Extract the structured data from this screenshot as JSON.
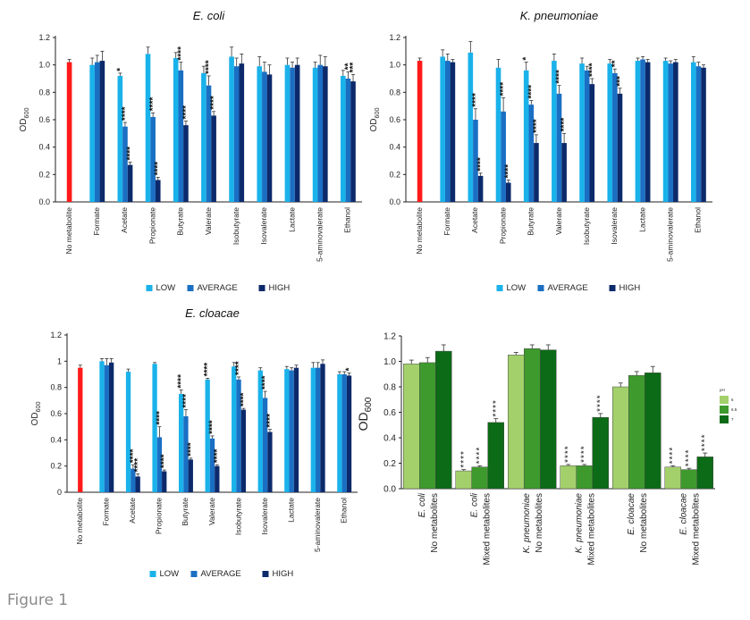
{
  "figure_label": "Figure 1",
  "legend_panels": {
    "low": "LOW",
    "average": "AVERAGE",
    "high": "HIGH"
  },
  "colors": {
    "low": "#1ab2ea",
    "average": "#1a6fc3",
    "high": "#0c2a6b",
    "control": "#ff1a1a",
    "ph6": "#a3d06b",
    "ph65": "#3f9a2e",
    "ph7": "#0c6b16"
  },
  "chart_data": [
    {
      "type": "bar",
      "title": "E. coli",
      "ylabel": "OD600",
      "ylim": [
        0,
        1.2
      ],
      "yticks": [
        "0.0",
        "0.2",
        "0.4",
        "0.6",
        "0.8",
        "1.0",
        "1.2"
      ],
      "control": {
        "label": "No metabolite",
        "value": 1.02,
        "err": 0.02
      },
      "categories": [
        "Formate",
        "Acetate",
        "Propionate",
        "Butyrate",
        "Valerate",
        "Isobutyrate",
        "Isovalerate",
        "Lactate",
        "5-aminovalerate",
        "Ethanol"
      ],
      "series": [
        {
          "name": "LOW",
          "values": [
            1.0,
            0.92,
            1.08,
            1.05,
            0.94,
            1.06,
            0.99,
            1.0,
            0.98,
            0.92
          ],
          "err": [
            0.05,
            0.02,
            0.05,
            0.04,
            0.05,
            0.07,
            0.07,
            0.05,
            0.04,
            0.04
          ]
        },
        {
          "name": "AVERAGE",
          "values": [
            1.02,
            0.55,
            0.62,
            0.96,
            0.85,
            0.99,
            0.95,
            0.98,
            1.0,
            0.9
          ],
          "err": [
            0.05,
            0.03,
            0.03,
            0.06,
            0.07,
            0.06,
            0.07,
            0.04,
            0.07,
            0.05
          ]
        },
        {
          "name": "HIGH",
          "values": [
            1.03,
            0.27,
            0.16,
            0.56,
            0.63,
            1.01,
            0.93,
            1.0,
            0.99,
            0.88
          ],
          "err": [
            0.07,
            0.02,
            0.02,
            0.03,
            0.03,
            0.07,
            0.07,
            0.05,
            0.07,
            0.05
          ]
        }
      ],
      "significance": [
        [
          "",
          "",
          ""
        ],
        [
          "*",
          "****",
          "****"
        ],
        [
          "",
          "****",
          "****"
        ],
        [
          "",
          "****",
          "****"
        ],
        [
          "",
          "****",
          "****"
        ],
        [
          "",
          "",
          ""
        ],
        [
          "",
          "",
          ""
        ],
        [
          "",
          "",
          ""
        ],
        [
          "",
          "",
          ""
        ],
        [
          "",
          "**",
          "***"
        ]
      ]
    },
    {
      "type": "bar",
      "title": "K. pneumoniae",
      "ylabel": "OD600",
      "ylim": [
        0,
        1.2
      ],
      "yticks": [
        "0.0",
        "0.2",
        "0.4",
        "0.6",
        "0.8",
        "1.0",
        "1.2"
      ],
      "control": {
        "label": "No metabolite",
        "value": 1.03,
        "err": 0.02
      },
      "categories": [
        "Formate",
        "Acetate",
        "Propionate",
        "Butyrate",
        "Valerate",
        "Isobutyrate",
        "Isovalerate",
        "Lactate",
        "5-aminovalerate",
        "Ethanol"
      ],
      "series": [
        {
          "name": "LOW",
          "values": [
            1.06,
            1.09,
            0.98,
            0.96,
            1.03,
            1.01,
            1.01,
            1.03,
            1.03,
            1.02
          ],
          "err": [
            0.05,
            0.08,
            0.06,
            0.06,
            0.05,
            0.04,
            0.03,
            0.02,
            0.02,
            0.04
          ]
        },
        {
          "name": "AVERAGE",
          "values": [
            1.03,
            0.6,
            0.66,
            0.71,
            0.79,
            0.96,
            0.94,
            1.04,
            1.01,
            0.99
          ],
          "err": [
            0.05,
            0.08,
            0.1,
            0.03,
            0.06,
            0.03,
            0.03,
            0.02,
            0.02,
            0.03
          ]
        },
        {
          "name": "HIGH",
          "values": [
            1.02,
            0.19,
            0.14,
            0.43,
            0.43,
            0.86,
            0.79,
            1.02,
            1.02,
            0.98
          ],
          "err": [
            0.02,
            0.02,
            0.02,
            0.06,
            0.07,
            0.04,
            0.04,
            0.02,
            0.02,
            0.02
          ]
        }
      ],
      "significance": [
        [
          "",
          "",
          ""
        ],
        [
          "",
          "****",
          "****"
        ],
        [
          "",
          "****",
          "****"
        ],
        [
          "*",
          "****",
          "****"
        ],
        [
          "",
          "****",
          "****"
        ],
        [
          "",
          "",
          "****"
        ],
        [
          "",
          "**",
          "***"
        ],
        [
          "",
          "",
          ""
        ],
        [
          "",
          "",
          ""
        ],
        [
          "",
          "",
          ""
        ]
      ]
    },
    {
      "type": "bar",
      "title": "E. cloacae",
      "ylabel": "OD600",
      "ylim": [
        0,
        1.2
      ],
      "yticks": [
        "0",
        "0.2",
        "0.4",
        "0.6",
        "0.8",
        "1",
        "1.2"
      ],
      "control": {
        "label": "No metabolite",
        "value": 0.95,
        "err": 0.02
      },
      "categories": [
        "Formate",
        "Acetate",
        "Propionate",
        "Butyrate",
        "Valerate",
        "Isobutyrate",
        "Isovalerate",
        "Lactate",
        "5-aminovalerate",
        "Ethanol"
      ],
      "series": [
        {
          "name": "LOW",
          "values": [
            1.0,
            0.92,
            0.98,
            0.75,
            0.86,
            0.96,
            0.93,
            0.94,
            0.95,
            0.9
          ],
          "err": [
            0.02,
            0.02,
            0.01,
            0.03,
            0.01,
            0.03,
            0.02,
            0.02,
            0.04,
            0.02
          ]
        },
        {
          "name": "AVERAGE",
          "values": [
            0.97,
            0.18,
            0.42,
            0.58,
            0.41,
            0.86,
            0.72,
            0.93,
            0.95,
            0.9
          ],
          "err": [
            0.05,
            0.03,
            0.08,
            0.05,
            0.02,
            0.02,
            0.05,
            0.02,
            0.04,
            0.02
          ]
        },
        {
          "name": "HIGH",
          "values": [
            0.99,
            0.12,
            0.16,
            0.25,
            0.2,
            0.63,
            0.46,
            0.95,
            0.98,
            0.89
          ],
          "err": [
            0.03,
            0.02,
            0.01,
            0.01,
            0.01,
            0.01,
            0.02,
            0.02,
            0.03,
            0.02
          ]
        }
      ],
      "significance": [
        [
          "",
          "",
          ""
        ],
        [
          "",
          "****",
          "****"
        ],
        [
          "",
          "****",
          "****"
        ],
        [
          "****",
          "****",
          "****"
        ],
        [
          "****",
          "****",
          "****"
        ],
        [
          "",
          "****",
          "****"
        ],
        [
          "",
          "****",
          "****"
        ],
        [
          "",
          "",
          ""
        ],
        [
          "",
          "",
          ""
        ],
        [
          "",
          "",
          "*"
        ]
      ]
    },
    {
      "type": "bar",
      "title": "",
      "ylabel": "OD600",
      "ylim": [
        0,
        1.2
      ],
      "yticks": [
        "0.0",
        "0.2",
        "0.4",
        "0.6",
        "0.8",
        "1.0",
        "1.2"
      ],
      "legend_title": "pH",
      "categories": [
        [
          "E. coli",
          "No metabolites"
        ],
        [
          "E. coli",
          "Mixed metabolites"
        ],
        [
          "K. pneumoniae",
          "No metabolites"
        ],
        [
          "K. pneumoniae",
          "Mixed metabolites"
        ],
        [
          "E. cloacae",
          "No metabolites"
        ],
        [
          "E. cloacae",
          "Mixed metabolites"
        ]
      ],
      "series": [
        {
          "name": "6",
          "values": [
            0.98,
            0.14,
            1.05,
            0.18,
            0.8,
            0.17
          ],
          "err": [
            0.03,
            0.01,
            0.02,
            0.01,
            0.03,
            0.01
          ]
        },
        {
          "name": "6.5",
          "values": [
            0.99,
            0.17,
            1.1,
            0.18,
            0.89,
            0.15
          ],
          "err": [
            0.04,
            0.01,
            0.03,
            0.01,
            0.03,
            0.01
          ]
        },
        {
          "name": "7",
          "values": [
            1.08,
            0.52,
            1.09,
            0.56,
            0.91,
            0.25
          ],
          "err": [
            0.05,
            0.03,
            0.04,
            0.03,
            0.05,
            0.03
          ]
        }
      ],
      "significance": [
        [
          "",
          "",
          ""
        ],
        [
          "****",
          "****",
          "****"
        ],
        [
          "",
          "",
          ""
        ],
        [
          "****",
          "****",
          "****"
        ],
        [
          "",
          "",
          ""
        ],
        [
          "****",
          "****",
          "****"
        ]
      ]
    }
  ]
}
